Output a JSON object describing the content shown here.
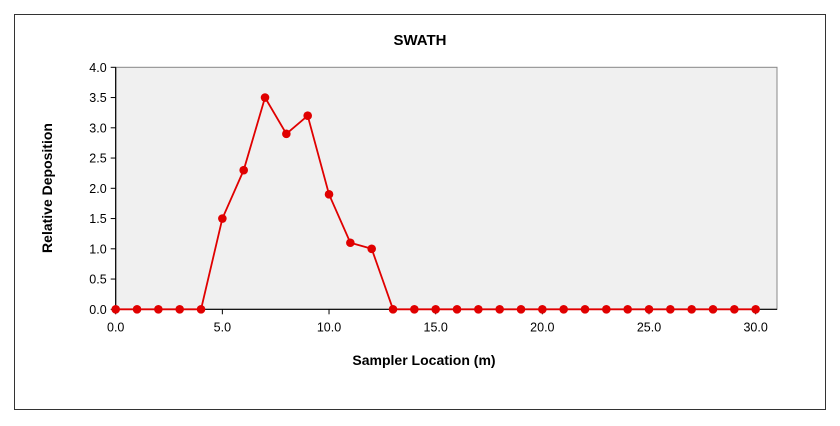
{
  "chart_data": {
    "type": "line",
    "title": "SWATH",
    "xlabel": "Sampler Location (m)",
    "ylabel": "Relative Deposition",
    "xlim": [
      0,
      31
    ],
    "ylim": [
      0,
      4
    ],
    "xticks": [
      "0.0",
      "5.0",
      "10.0",
      "15.0",
      "20.0",
      "25.0",
      "30.0"
    ],
    "xtick_values": [
      0,
      5,
      10,
      15,
      20,
      25,
      30
    ],
    "yticks": [
      "0.0",
      "0.5",
      "1.0",
      "1.5",
      "2.0",
      "2.5",
      "3.0",
      "3.5",
      "4.0"
    ],
    "ytick_values": [
      0,
      0.5,
      1,
      1.5,
      2,
      2.5,
      3,
      3.5,
      4
    ],
    "grid": false,
    "series": [
      {
        "name": "Relative Deposition",
        "color": "#e00000",
        "x": [
          0,
          1,
          2,
          3,
          4,
          5,
          6,
          7,
          8,
          9,
          10,
          11,
          12,
          13,
          14,
          15,
          16,
          17,
          18,
          19,
          20,
          21,
          22,
          23,
          24,
          25,
          26,
          27,
          28,
          29,
          30
        ],
        "values": [
          0,
          0,
          0,
          0,
          0,
          1.5,
          2.3,
          3.5,
          2.9,
          3.2,
          1.9,
          1.1,
          1.0,
          0,
          0,
          0,
          0,
          0,
          0,
          0,
          0,
          0,
          0,
          0,
          0,
          0,
          0,
          0,
          0,
          0,
          0
        ]
      }
    ],
    "plot_background": "#f0f0f0"
  }
}
